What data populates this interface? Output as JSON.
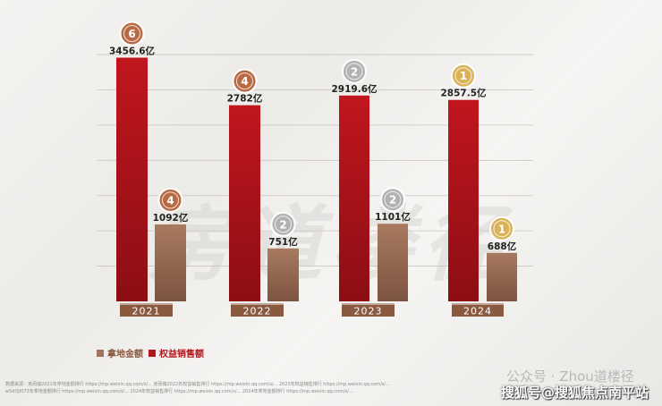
{
  "chart_data": {
    "type": "bar",
    "categories": [
      "2021",
      "2022",
      "2023",
      "2024"
    ],
    "series": [
      {
        "name": "权益销售额",
        "values": [
          3456.6,
          2782,
          2919.6,
          2857.5
        ],
        "labels": [
          "3456.6亿",
          "2782亿",
          "2919.6亿",
          "2857.5亿"
        ],
        "ranks": [
          6,
          4,
          2,
          1
        ],
        "color": "#b3161d"
      },
      {
        "name": "拿地金额",
        "values": [
          1092,
          751,
          1101,
          688
        ],
        "labels": [
          "1092亿",
          "751亿",
          "1101亿",
          "688亿"
        ],
        "ranks": [
          4,
          2,
          2,
          1
        ],
        "color": "#a0735a"
      }
    ],
    "ylim": [
      0,
      4000
    ],
    "grid": true
  },
  "legend": [
    {
      "label": "拿地金额",
      "color": "#a0735a"
    },
    {
      "label": "权益销售额",
      "color": "#b3161d"
    }
  ],
  "rank_colors": {
    "1": "#d9b25a",
    "2": "#b2b2b2",
    "4": "#b86a44",
    "6": "#b86a44"
  },
  "watermark": "房道楼径",
  "footer_lines": [
    "数据来源：克而瑞2021年拿地金额排行 https://mp.weixin.qq.com/s/... 克而瑞2022年权益销售排行 https://mp.weixin.qq.com/s/... 2023年权益销售排行 https://mp.weixin.qq.com/s/...",
    "w5dQjl073年拿地金额排行 https://mp.weixin.qq.com/s/... 2024年权益销售排行 https://mp.weixin.qq.com/s/... 2024年拿地金额排行 https://mp.weixin.qq.com/s/..."
  ],
  "wechat_label": "公众号 · Zhou道楼径",
  "sohu_label": "搜狐号@搜狐焦点南平站"
}
